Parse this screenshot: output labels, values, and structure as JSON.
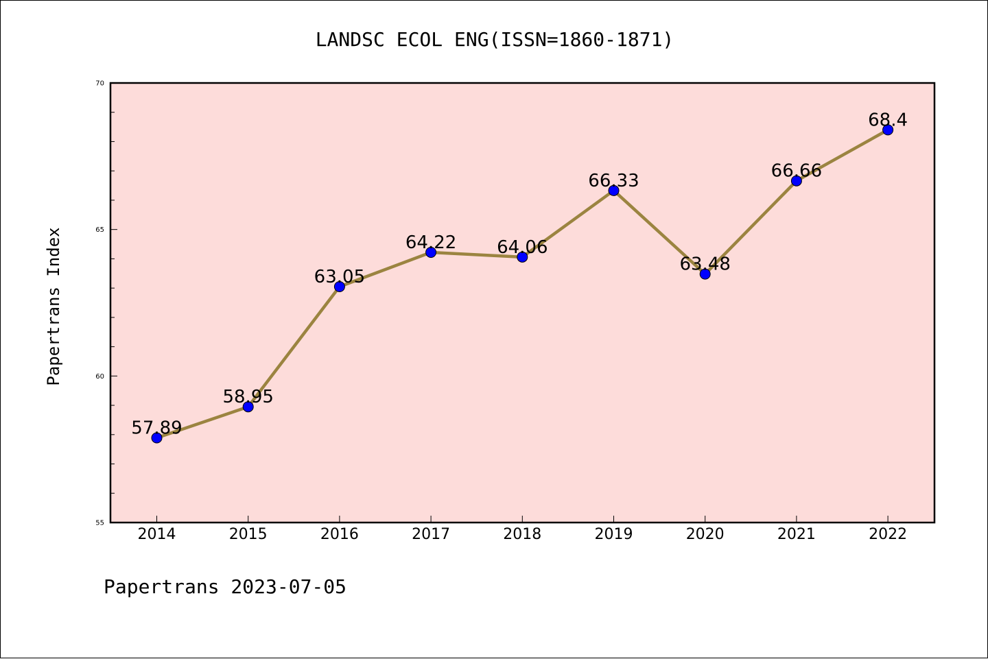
{
  "chart_data": {
    "type": "line",
    "title": "LANDSC ECOL ENG(ISSN=1860-1871)",
    "xlabel": "",
    "ylabel": "Papertrans Index",
    "categories": [
      "2014",
      "2015",
      "2016",
      "2017",
      "2018",
      "2019",
      "2020",
      "2021",
      "2022"
    ],
    "series": [
      {
        "values": [
          57.89,
          58.95,
          63.05,
          64.22,
          64.06,
          66.33,
          63.48,
          66.66,
          68.4
        ],
        "labels": [
          "57.89",
          "58.95",
          "63.05",
          "64.22",
          "64.06",
          "66.33",
          "63.48",
          "66.66",
          "68.4"
        ],
        "line_color": "#9b8440",
        "marker_color": "#0000ff"
      }
    ],
    "ylim": [
      55,
      70
    ],
    "yticks": [
      "55",
      "60",
      "65",
      "70"
    ],
    "grid": false,
    "plot_background": "#fddcda",
    "footer": "Papertrans 2023-07-05"
  }
}
